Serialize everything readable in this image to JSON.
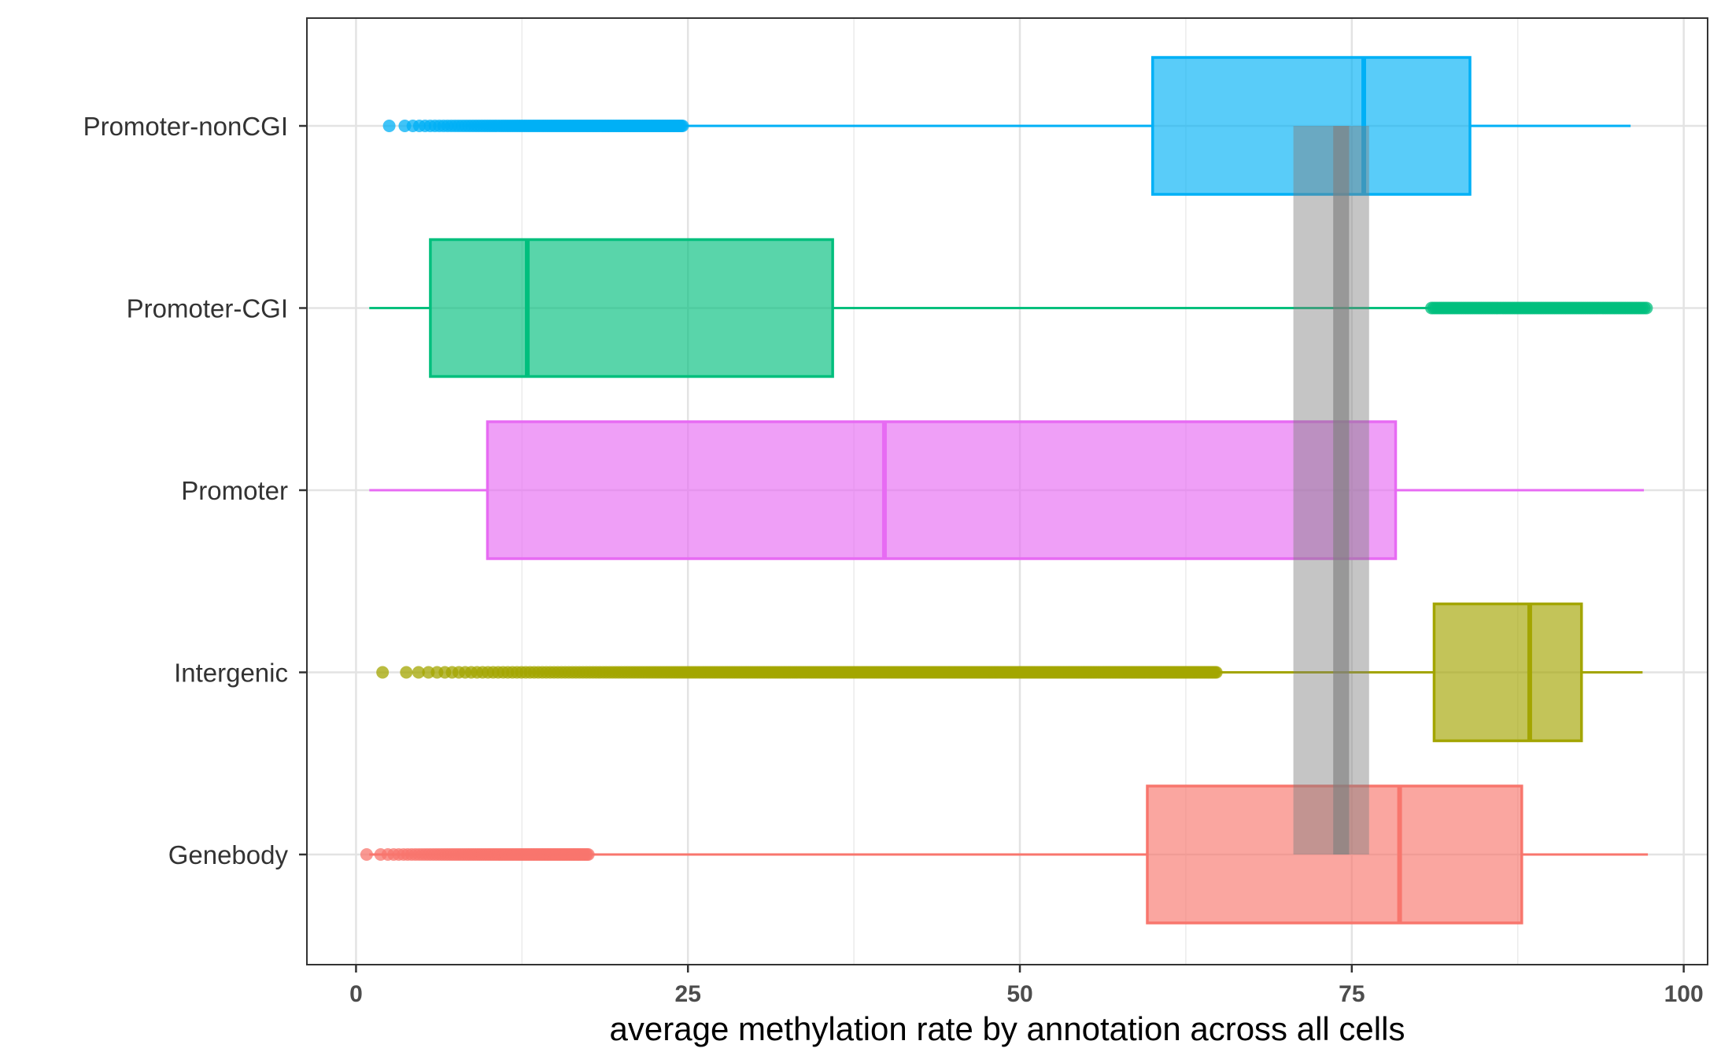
{
  "chart_data": {
    "type": "boxplot",
    "orientation": "horizontal",
    "xlabel": "average methylation rate by annotation across all cells",
    "ylabel": "",
    "xlim": [
      -3.7,
      101.8
    ],
    "x_ticks": [
      0,
      25,
      50,
      75,
      100
    ],
    "x_tick_labels": [
      "0",
      "25",
      "50",
      "75",
      "100"
    ],
    "grid": true,
    "legend": "none",
    "categories": [
      "Genebody",
      "Intergenic",
      "Promoter",
      "Promoter-CGI",
      "Promoter-nonCGI"
    ],
    "series": [
      {
        "category": "Genebody",
        "color": "#F8766D",
        "whisker_low": 1.0,
        "q1": 59.6,
        "median": 78.6,
        "q3": 87.8,
        "whisker_high": 97.3,
        "outliers_range": [
          0.8,
          17.5
        ]
      },
      {
        "category": "Intergenic",
        "color": "#A3A500",
        "whisker_low": 64.8,
        "q1": 81.2,
        "median": 88.4,
        "q3": 92.3,
        "whisker_high": 96.9,
        "outliers_range": [
          2.0,
          64.8
        ]
      },
      {
        "category": "Promoter",
        "color": "#E76BF3",
        "whisker_low": 1.0,
        "q1": 9.9,
        "median": 39.8,
        "q3": 78.3,
        "whisker_high": 97.0,
        "outliers_range": null
      },
      {
        "category": "Promoter-CGI",
        "color": "#00BF7D",
        "whisker_low": 1.0,
        "q1": 5.6,
        "median": 12.9,
        "q3": 35.9,
        "whisker_high": 81.0,
        "outliers_range": [
          81.0,
          97.2
        ]
      },
      {
        "category": "Promoter-nonCGI",
        "color": "#00B0F6",
        "whisker_low": 24.6,
        "q1": 60.0,
        "median": 75.9,
        "q3": 83.9,
        "whisker_high": 96.0,
        "outliers_range": [
          2.5,
          24.6
        ]
      }
    ],
    "reference_band": {
      "center": 74.2,
      "inner": [
        73.6,
        74.8
      ],
      "outer": [
        70.6,
        76.3
      ],
      "y_from_category": "Genebody",
      "y_to_category": "Promoter-nonCGI",
      "color": "#7f7f7f"
    }
  }
}
